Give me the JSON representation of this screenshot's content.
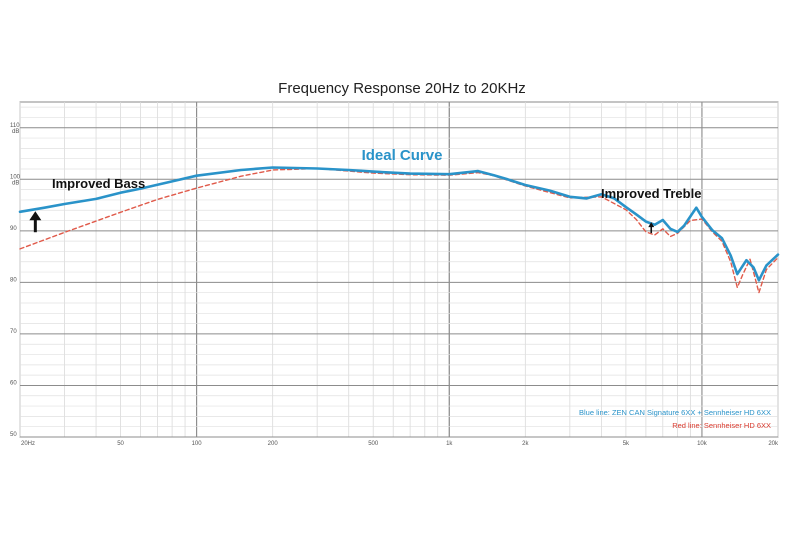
{
  "chart_data": {
    "type": "line",
    "title": "Frequency Response 20Hz to 20KHz",
    "xscale": "log",
    "xlim": [
      20,
      20000
    ],
    "ylim": [
      50,
      115
    ],
    "y_unit": "dB",
    "grid": true,
    "x_ticks": [
      {
        "value": 20,
        "label": "20Hz"
      },
      {
        "value": 50,
        "label": "50"
      },
      {
        "value": 100,
        "label": "100"
      },
      {
        "value": 200,
        "label": "200"
      },
      {
        "value": 500,
        "label": "500"
      },
      {
        "value": 1000,
        "label": "1k"
      },
      {
        "value": 2000,
        "label": "2k"
      },
      {
        "value": 5000,
        "label": "5k"
      },
      {
        "value": 10000,
        "label": "10k"
      },
      {
        "value": 20000,
        "label": "20k"
      }
    ],
    "y_ticks": [
      {
        "value": 110,
        "label": "110",
        "unit": "dB"
      },
      {
        "value": 100,
        "label": "100",
        "unit": "dB"
      },
      {
        "value": 90,
        "label": "90"
      },
      {
        "value": 80,
        "label": "80"
      },
      {
        "value": 70,
        "label": "70"
      },
      {
        "value": 60,
        "label": "60"
      },
      {
        "value": 50,
        "label": "50"
      }
    ],
    "series": [
      {
        "name": "Blue line: ZEN CAN Signature 6XX + Sennheiser HD 6XX",
        "color": "#2a93c9",
        "style": "solid",
        "points": [
          [
            20,
            93.7
          ],
          [
            25,
            94.5
          ],
          [
            30,
            95.2
          ],
          [
            40,
            96.2
          ],
          [
            50,
            97.4
          ],
          [
            60,
            98.2
          ],
          [
            80,
            99.6
          ],
          [
            100,
            100.7
          ],
          [
            150,
            101.8
          ],
          [
            200,
            102.3
          ],
          [
            300,
            102.1
          ],
          [
            400,
            101.8
          ],
          [
            500,
            101.5
          ],
          [
            700,
            101.1
          ],
          [
            1000,
            101.0
          ],
          [
            1300,
            101.6
          ],
          [
            1500,
            100.8
          ],
          [
            1700,
            100.0
          ],
          [
            2000,
            98.9
          ],
          [
            2500,
            97.8
          ],
          [
            3000,
            96.6
          ],
          [
            3500,
            96.3
          ],
          [
            4000,
            97.1
          ],
          [
            4500,
            96.3
          ],
          [
            5000,
            94.6
          ],
          [
            5500,
            93.2
          ],
          [
            6000,
            91.8
          ],
          [
            6500,
            91.2
          ],
          [
            7000,
            92.1
          ],
          [
            7500,
            90.4
          ],
          [
            8000,
            89.8
          ],
          [
            8500,
            91.0
          ],
          [
            9000,
            92.8
          ],
          [
            9500,
            94.5
          ],
          [
            10000,
            92.7
          ],
          [
            11000,
            90.1
          ],
          [
            12000,
            88.6
          ],
          [
            13000,
            85.2
          ],
          [
            13800,
            81.6
          ],
          [
            15000,
            84.3
          ],
          [
            16000,
            82.9
          ],
          [
            16800,
            80.4
          ],
          [
            18000,
            83.3
          ],
          [
            20000,
            85.4
          ]
        ]
      },
      {
        "name": "Red line: Sennheiser HD 6XX",
        "color": "#e05a4a",
        "style": "dashed",
        "points": [
          [
            20,
            86.5
          ],
          [
            30,
            89.7
          ],
          [
            50,
            93.6
          ],
          [
            70,
            96.1
          ],
          [
            100,
            98.3
          ],
          [
            150,
            100.6
          ],
          [
            200,
            101.8
          ],
          [
            300,
            102.1
          ],
          [
            500,
            101.2
          ],
          [
            700,
            100.9
          ],
          [
            1000,
            100.8
          ],
          [
            1300,
            101.3
          ],
          [
            1500,
            100.7
          ],
          [
            2000,
            98.7
          ],
          [
            3000,
            96.4
          ],
          [
            4000,
            96.6
          ],
          [
            5000,
            94.1
          ],
          [
            5500,
            92.2
          ],
          [
            6000,
            89.8
          ],
          [
            6500,
            89.2
          ],
          [
            7000,
            90.4
          ],
          [
            7500,
            88.9
          ],
          [
            8000,
            89.5
          ],
          [
            9000,
            92.0
          ],
          [
            10000,
            92.3
          ],
          [
            11000,
            89.8
          ],
          [
            12000,
            88.0
          ],
          [
            13000,
            84.0
          ],
          [
            13800,
            79.0
          ],
          [
            14500,
            81.5
          ],
          [
            15500,
            84.5
          ],
          [
            16200,
            81.0
          ],
          [
            16800,
            78.0
          ],
          [
            18000,
            82.5
          ],
          [
            20000,
            84.8
          ]
        ]
      }
    ],
    "annotations": [
      {
        "text": "Ideal Curve",
        "color": "#2a93c9"
      },
      {
        "text": "Improved Bass",
        "arrow_at": [
          23,
          94
        ]
      },
      {
        "text": "Improved Treble",
        "arrow_at": [
          6300,
          91.5
        ]
      }
    ],
    "legend_position": "bottom-right"
  }
}
